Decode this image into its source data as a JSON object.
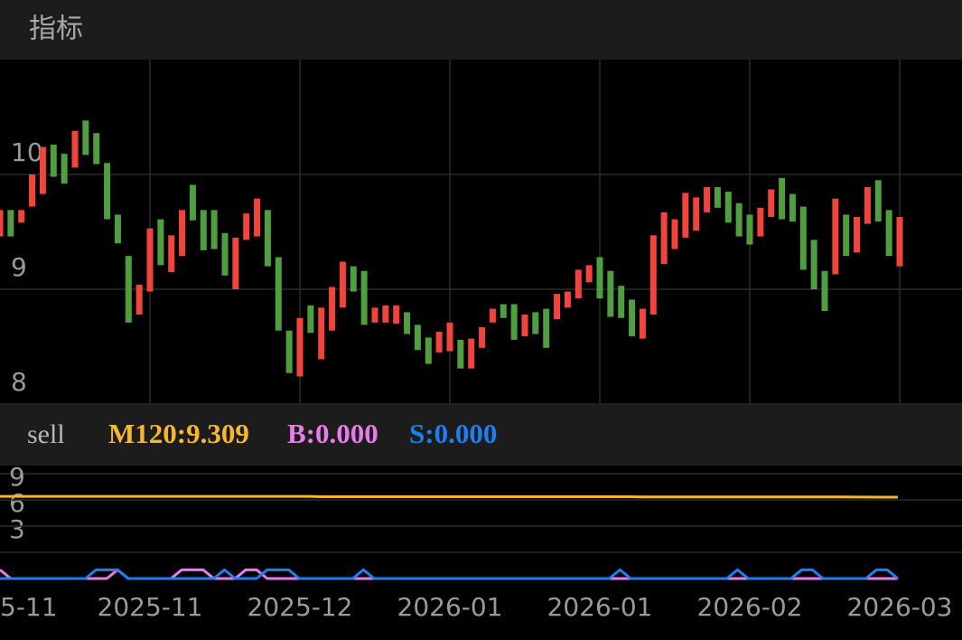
{
  "header": {
    "title": "指标"
  },
  "chart_data": [
    {
      "type": "candlestick",
      "open": [
        9.46,
        9.69,
        9.58,
        9.72,
        9.83,
        10.26,
        10.18,
        10.06,
        10.47,
        10.36,
        10.1,
        9.65,
        9.29,
        8.78,
        8.98,
        9.61,
        9.15,
        9.29,
        9.91,
        9.69,
        9.69,
        9.49,
        9.0,
        9.43,
        9.46,
        9.69,
        9.28,
        8.64,
        8.24,
        8.86,
        8.39,
        8.64,
        8.84,
        9.2,
        9.16,
        8.71,
        8.71,
        8.7,
        8.8,
        8.69,
        8.58,
        8.45,
        8.46,
        8.56,
        8.31,
        8.49,
        8.71,
        8.87,
        8.87,
        8.59,
        8.8,
        8.83,
        8.74,
        8.84,
        8.92,
        9.06,
        9.28,
        9.16,
        9.03,
        8.91,
        8.57,
        8.78,
        9.22,
        9.35,
        9.45,
        9.51,
        9.67,
        9.89,
        9.85,
        9.75,
        9.65,
        9.46,
        9.63,
        9.97,
        9.83,
        9.72,
        9.43,
        9.16,
        9.13,
        9.65,
        9.32,
        9.57,
        9.95,
        9.69,
        9.2
      ],
      "close": [
        9.69,
        9.46,
        9.69,
        10.0,
        10.24,
        9.98,
        9.92,
        10.38,
        10.17,
        10.09,
        9.61,
        9.4,
        8.71,
        9.04,
        9.53,
        9.21,
        9.47,
        9.69,
        9.6,
        9.34,
        9.35,
        9.12,
        9.45,
        9.66,
        9.79,
        9.2,
        8.64,
        8.27,
        8.75,
        8.62,
        8.84,
        9.02,
        9.24,
        8.98,
        8.69,
        8.84,
        8.86,
        8.86,
        8.61,
        8.47,
        8.35,
        8.63,
        8.71,
        8.31,
        8.57,
        8.67,
        8.83,
        8.75,
        8.56,
        8.78,
        8.61,
        8.49,
        8.96,
        8.98,
        9.17,
        9.21,
        8.92,
        8.76,
        8.75,
        8.59,
        8.83,
        9.47,
        9.67,
        9.61,
        9.84,
        9.8,
        9.89,
        9.71,
        9.58,
        9.46,
        9.39,
        9.71,
        9.87,
        9.61,
        9.59,
        9.17,
        9.0,
        8.81,
        9.79,
        9.29,
        9.63,
        9.89,
        9.59,
        9.29,
        9.63
      ],
      "up_color": "#f0443c",
      "down_color": "#4f9e3f",
      "ylim": [
        8,
        11
      ],
      "yticks": [
        8,
        9,
        10
      ],
      "grid": true,
      "xtick_labels": [
        "5-11",
        "2025-11",
        "2025-12",
        "2026-01",
        "2026-01",
        "2026-02",
        "2026-03"
      ]
    },
    {
      "type": "line",
      "title": "sell",
      "series": [
        {
          "label": "M120:9.309",
          "color": "#f5b730",
          "values": [
            9.4,
            9.4,
            9.4,
            9.4,
            9.4,
            9.4,
            9.4,
            9.4,
            9.4,
            9.4,
            9.4,
            9.4,
            9.4,
            9.4,
            9.4,
            9.4,
            9.4,
            9.4,
            9.4,
            9.4,
            9.4,
            9.4,
            9.4,
            9.4,
            9.4,
            9.4,
            9.4,
            9.4,
            9.4,
            9.4,
            9.36,
            9.36,
            9.36,
            9.36,
            9.36,
            9.36,
            9.36,
            9.36,
            9.36,
            9.36,
            9.36,
            9.36,
            9.36,
            9.36,
            9.36,
            9.36,
            9.36,
            9.36,
            9.36,
            9.36,
            9.36,
            9.36,
            9.36,
            9.36,
            9.36,
            9.36,
            9.36,
            9.36,
            9.36,
            9.36,
            9.33,
            9.33,
            9.33,
            9.33,
            9.33,
            9.33,
            9.33,
            9.33,
            9.33,
            9.33,
            9.33,
            9.33,
            9.33,
            9.33,
            9.33,
            9.33,
            9.33,
            9.33,
            9.33,
            9.33,
            9.32,
            9.32,
            9.31,
            9.31,
            9.309
          ]
        },
        {
          "label": "B:0.000",
          "color": "#e87de8",
          "values": [
            1,
            0,
            0,
            0,
            0,
            0,
            0,
            0,
            0,
            0,
            0,
            1,
            0,
            0,
            0,
            0,
            0,
            1,
            1,
            1,
            0,
            0,
            0,
            1,
            1,
            0,
            0,
            0,
            0,
            0,
            0,
            0,
            0,
            0,
            0,
            0,
            0,
            0,
            0,
            0,
            0,
            0,
            0,
            0,
            0,
            0,
            0,
            0,
            0,
            0,
            0,
            0,
            0,
            0,
            0,
            0,
            0,
            0,
            0,
            0,
            0,
            0,
            0,
            0,
            0,
            0,
            0,
            0,
            0,
            0,
            0,
            0,
            0,
            0,
            0,
            0,
            0,
            0,
            0,
            0,
            0,
            0,
            0,
            0,
            0
          ]
        },
        {
          "label": "S:0.000",
          "color": "#1d7ff0",
          "values": [
            0,
            0,
            0,
            0,
            0,
            0,
            0,
            0,
            0,
            1,
            1,
            1,
            0,
            0,
            0,
            0,
            0,
            0,
            0,
            0,
            0,
            1,
            0,
            0,
            0,
            1,
            1,
            1,
            0,
            0,
            0,
            0,
            0,
            0,
            1,
            0,
            0,
            0,
            0,
            0,
            0,
            0,
            0,
            0,
            0,
            0,
            0,
            0,
            0,
            0,
            0,
            0,
            0,
            0,
            0,
            0,
            0,
            0,
            1,
            0,
            0,
            0,
            0,
            0,
            0,
            0,
            0,
            0,
            0,
            1,
            0,
            0,
            0,
            0,
            0,
            1,
            1,
            0,
            0,
            0,
            0,
            0,
            1,
            1,
            0
          ]
        }
      ],
      "ylim": [
        0,
        12
      ],
      "yticks": [
        3,
        6,
        9
      ],
      "grid": true
    }
  ]
}
